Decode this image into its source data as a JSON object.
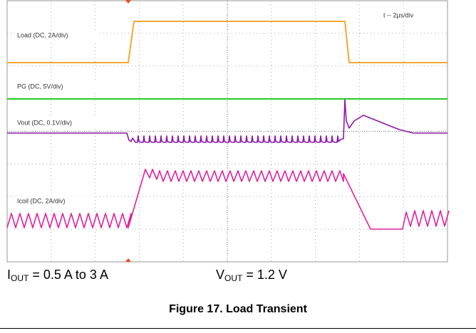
{
  "scope": {
    "timebase": "t -- 2μs/div",
    "traces": [
      {
        "label": "Load (DC, 2A/div)"
      },
      {
        "label": "PG (DC, 5V/div)"
      },
      {
        "label": "Vout (DC, 0.1V/div)"
      },
      {
        "label": "Icoil (DC, 2A/div)"
      }
    ]
  },
  "conditions": [
    {
      "symbol": "I",
      "subscript": "OUT",
      "text": "= 0.5 A to 3 A"
    },
    {
      "symbol": "V",
      "subscript": "OUT",
      "text": "= 1.2 V"
    }
  ],
  "caption": "Figure 17. Load Transient"
}
